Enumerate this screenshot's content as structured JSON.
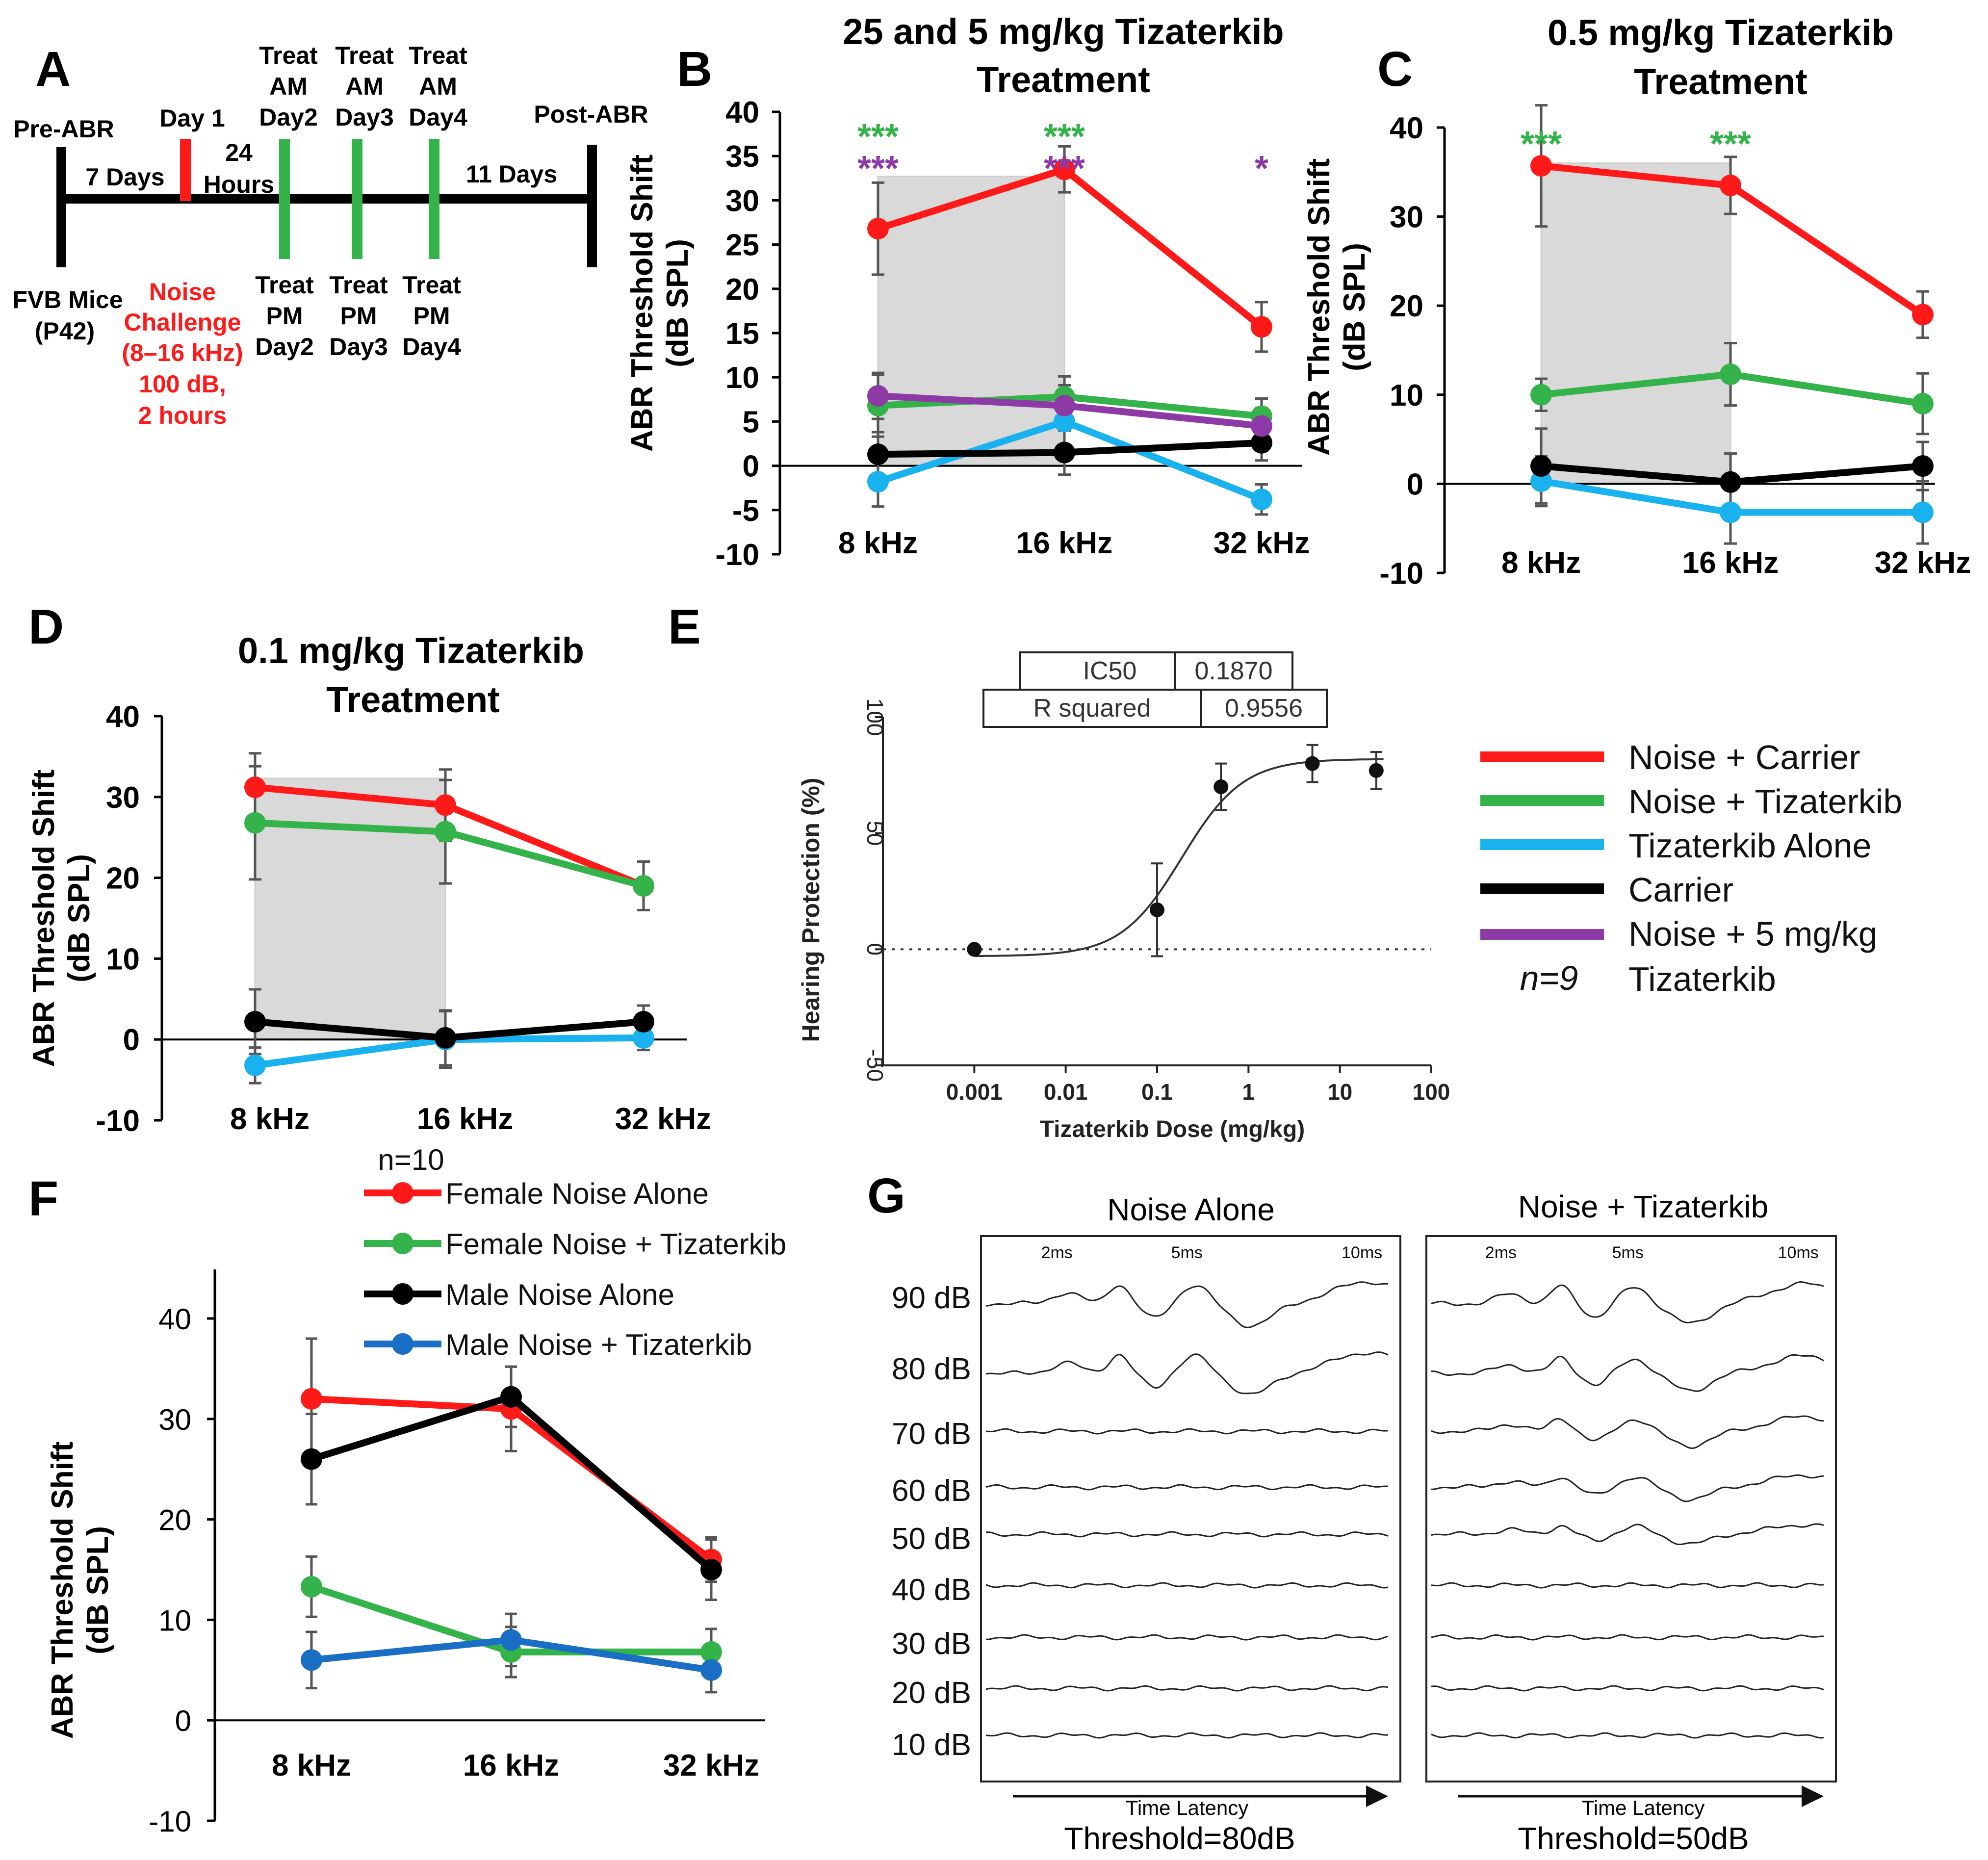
{
  "colors": {
    "noise_carrier": "#ff1a1a",
    "noise_tiz": "#33b34a",
    "tiz_alone": "#1ab2ee",
    "carrier": "#000000",
    "noise_5": "#8e3aa6",
    "male_noise_tiz": "#1a6fc4",
    "shade": "#d9d9d9"
  },
  "panel_labels": {
    "a": "A",
    "b": "B",
    "c": "C",
    "d": "D",
    "e": "E",
    "f": "F",
    "g": "G"
  },
  "timeline": {
    "pre_abr": "Pre-ABR",
    "day1": "Day 1",
    "seven_days": "7 Days",
    "hours_24_a": "24",
    "hours_24_b": "Hours",
    "am_treats": [
      {
        "l1": "Treat",
        "l2": "AM",
        "l3": "Day2"
      },
      {
        "l1": "Treat",
        "l2": "AM",
        "l3": "Day3"
      },
      {
        "l1": "Treat",
        "l2": "AM",
        "l3": "Day4"
      }
    ],
    "pm_treats": [
      {
        "l1": "Treat",
        "l2": "PM",
        "l3": "Day2"
      },
      {
        "l1": "Treat",
        "l2": "PM",
        "l3": "Day3"
      },
      {
        "l1": "Treat",
        "l2": "PM",
        "l3": "Day4"
      }
    ],
    "eleven_days": "11 Days",
    "post_abr": "Post-ABR",
    "mice_a": "FVB Mice",
    "mice_b": "(P42)",
    "noise_lines": [
      "Noise",
      "Challenge",
      "(8–16 kHz)",
      "100 dB,",
      "2 hours"
    ]
  },
  "legend_main": {
    "items": [
      "Noise + Carrier",
      "Noise + Tizaterkib",
      "Tizaterkib Alone",
      "Carrier",
      "Noise + 5 mg/kg"
    ],
    "item5_line2": "Tizaterkib",
    "n": "n=9"
  },
  "chart_data": [
    {
      "id": "B",
      "type": "line",
      "title": "25 and 5 mg/kg Tizaterkib Treatment",
      "title_lines": [
        "25 and 5 mg/kg Tizaterkib",
        "Treatment"
      ],
      "ylabel": "ABR Threshold Shift (dB SPL)",
      "ylabel_lines": [
        "ABR Threshold Shift",
        "(dB SPL)"
      ],
      "categories": [
        "8 kHz",
        "16 kHz",
        "32 kHz"
      ],
      "ylim": [
        -10,
        40
      ],
      "yticks": [
        -10,
        -5,
        0,
        5,
        10,
        15,
        20,
        25,
        30,
        35,
        40
      ],
      "ytick_labels": [
        "-10",
        "-5",
        "0",
        "5",
        "10",
        "15",
        "20",
        "25",
        "30",
        "35",
        "40"
      ],
      "shaded_region": [
        "8 kHz",
        "16 kHz"
      ],
      "series": [
        {
          "name": "Noise + Carrier",
          "color": "#ff1a1a",
          "values": [
            26.8,
            33.5,
            15.7
          ],
          "errors": [
            5.2,
            2.6,
            2.8
          ]
        },
        {
          "name": "Noise + Tizaterkib",
          "color": "#33b34a",
          "values": [
            6.8,
            7.8,
            5.6
          ],
          "errors": [
            3.5,
            2.3,
            2.0
          ]
        },
        {
          "name": "Tizaterkib Alone",
          "color": "#1ab2ee",
          "values": [
            -1.8,
            5.0,
            -3.8
          ],
          "errors": [
            2.8,
            3.2,
            1.7
          ]
        },
        {
          "name": "Carrier",
          "color": "#000000",
          "values": [
            1.3,
            1.5,
            2.6
          ],
          "errors": [
            2.5,
            2.5,
            2.0
          ]
        },
        {
          "name": "Noise + 5 mg/kg Tizaterkib",
          "color": "#8e3aa6",
          "values": [
            7.9,
            6.8,
            4.5
          ],
          "errors": [
            2.6,
            2.3,
            2.0
          ]
        }
      ],
      "annotations": [
        {
          "text": "***",
          "color": "#33b34a",
          "category": "8 kHz",
          "row": 1
        },
        {
          "text": "***",
          "color": "#8e3aa6",
          "category": "8 kHz",
          "row": 2
        },
        {
          "text": "***",
          "color": "#33b34a",
          "category": "16 kHz",
          "row": 1
        },
        {
          "text": "***",
          "color": "#8e3aa6",
          "category": "16 kHz",
          "row": 2
        },
        {
          "text": "*",
          "color": "#8e3aa6",
          "category": "32 kHz",
          "row": 2
        }
      ]
    },
    {
      "id": "C",
      "type": "line",
      "title": "0.5 mg/kg Tizaterkib Treatment",
      "title_lines": [
        "0.5 mg/kg Tizaterkib",
        "Treatment"
      ],
      "ylabel": "ABR Threshold Shift (dB SPL)",
      "ylabel_lines": [
        "ABR Threshold Shift",
        "(dB SPL)"
      ],
      "categories": [
        "8 kHz",
        "16 kHz",
        "32 kHz"
      ],
      "ylim": [
        -10,
        40
      ],
      "yticks": [
        -10,
        0,
        10,
        20,
        30,
        40
      ],
      "ytick_labels": [
        "-10",
        "0",
        "10",
        "20",
        "30",
        "40"
      ],
      "shaded_region": [
        "8 kHz",
        "16 kHz"
      ],
      "series": [
        {
          "name": "Noise + Carrier",
          "color": "#ff1a1a",
          "values": [
            35.7,
            33.5,
            19.0
          ],
          "errors": [
            6.8,
            3.2,
            2.6
          ]
        },
        {
          "name": "Noise + Tizaterkib",
          "color": "#33b34a",
          "values": [
            10.0,
            12.3,
            9.0
          ],
          "errors": [
            1.8,
            3.5,
            3.4
          ]
        },
        {
          "name": "Tizaterkib Alone",
          "color": "#1ab2ee",
          "values": [
            0.3,
            -3.2,
            -3.2
          ],
          "errors": [
            2.8,
            3.5,
            3.5
          ]
        },
        {
          "name": "Carrier",
          "color": "#000000",
          "values": [
            2.0,
            0.2,
            2.0
          ],
          "errors": [
            4.2,
            3.2,
            2.7
          ]
        }
      ],
      "annotations": [
        {
          "text": "***",
          "color": "#33b34a",
          "category": "8 kHz",
          "row": 1
        },
        {
          "text": "***",
          "color": "#33b34a",
          "category": "16 kHz",
          "row": 1
        }
      ]
    },
    {
      "id": "D",
      "type": "line",
      "title": "0.1 mg/kg Tizaterkib Treatment",
      "title_lines": [
        "0.1 mg/kg Tizaterkib",
        "Treatment"
      ],
      "ylabel": "ABR Threshold Shift (dB SPL)",
      "ylabel_lines": [
        "ABR Threshold Shift",
        "(dB SPL)"
      ],
      "categories": [
        "8 kHz",
        "16 kHz",
        "32 kHz"
      ],
      "ylim": [
        -10,
        40
      ],
      "yticks": [
        -10,
        0,
        10,
        20,
        30,
        40
      ],
      "ytick_labels": [
        "-10",
        "0",
        "10",
        "20",
        "30",
        "40"
      ],
      "shaded_region": [
        "8 kHz",
        "16 kHz"
      ],
      "series": [
        {
          "name": "Noise + Carrier",
          "color": "#ff1a1a",
          "values": [
            31.2,
            29.0,
            19.0
          ],
          "errors": [
            4.2,
            4.4,
            3.0
          ]
        },
        {
          "name": "Noise + Tizaterkib",
          "color": "#33b34a",
          "values": [
            26.8,
            25.7,
            19.0
          ],
          "errors": [
            7.0,
            6.4,
            3.0
          ]
        },
        {
          "name": "Tizaterkib Alone",
          "color": "#1ab2ee",
          "values": [
            -3.2,
            0.0,
            0.2
          ],
          "errors": [
            2.2,
            3.5,
            1.5
          ]
        },
        {
          "name": "Carrier",
          "color": "#000000",
          "values": [
            2.2,
            0.2,
            2.2
          ],
          "errors": [
            4.0,
            3.4,
            2.0
          ]
        }
      ],
      "annotations": []
    },
    {
      "id": "E",
      "type": "scatter",
      "ylabel": "Hearing Protection (%)",
      "xlabel": "Tizaterkib Dose (mg/kg)",
      "xscale": "log",
      "xlim": [
        0.0001,
        100
      ],
      "ylim": [
        -50,
        100
      ],
      "xticks": [
        0.001,
        0.01,
        0.1,
        1,
        10,
        100
      ],
      "xtick_labels": [
        "0.001",
        "0.01",
        "0.1",
        "1",
        "10",
        "100"
      ],
      "yticks": [
        -50,
        0,
        50,
        100
      ],
      "ytick_labels": [
        "-50",
        "0",
        "50",
        "100"
      ],
      "points": [
        {
          "x": 0.001,
          "y": 0,
          "err": 0
        },
        {
          "x": 0.1,
          "y": 17,
          "err": 20
        },
        {
          "x": 0.5,
          "y": 70,
          "err": 10
        },
        {
          "x": 5,
          "y": 80,
          "err": 8
        },
        {
          "x": 25,
          "y": 77,
          "err": 8
        }
      ],
      "fit": {
        "bottom": -3,
        "top": 82,
        "ic50": 0.187,
        "hill": 1.3
      },
      "stats": [
        {
          "label": "IC50",
          "value": "0.1870"
        },
        {
          "label": "R squared",
          "value": "0.9556"
        }
      ]
    },
    {
      "id": "F",
      "type": "line",
      "ylabel": "ABR Threshold Shift (dB SPL)",
      "ylabel_lines": [
        "ABR Threshold Shift",
        "(dB SPL)"
      ],
      "categories": [
        "8 kHz",
        "16 kHz",
        "32 kHz"
      ],
      "ylim": [
        -10,
        40
      ],
      "yticks": [
        -10,
        0,
        10,
        20,
        30,
        40
      ],
      "ytick_labels": [
        "-10",
        "0",
        "10",
        "20",
        "30",
        "40"
      ],
      "legend_n": "n=10",
      "series": [
        {
          "name": "Female Noise Alone",
          "color": "#ff1a1a",
          "values": [
            32.0,
            31.0,
            16.0
          ],
          "errors": [
            6.0,
            4.2,
            2.2
          ]
        },
        {
          "name": "Female Noise + Tizaterkib",
          "color": "#33b34a",
          "values": [
            13.3,
            6.8,
            6.8
          ],
          "errors": [
            3.0,
            2.5,
            2.3
          ]
        },
        {
          "name": "Male Noise Alone",
          "color": "#000000",
          "values": [
            26.0,
            32.2,
            15.0
          ],
          "errors": [
            4.5,
            3.0,
            3.0
          ]
        },
        {
          "name": "Male Noise + Tizaterkib",
          "color": "#1a6fc4",
          "values": [
            6.0,
            8.0,
            5.0
          ],
          "errors": [
            2.8,
            2.6,
            2.2
          ]
        }
      ]
    },
    {
      "id": "G",
      "type": "abr_traces",
      "levels": [
        "90 dB",
        "80 dB",
        "70 dB",
        "60 dB",
        "50 dB",
        "40 dB",
        "30 dB",
        "20 dB",
        "10 dB"
      ],
      "time_marks": [
        "2ms",
        "5ms",
        "10ms"
      ],
      "axis_label": "Time Latency",
      "panels": [
        {
          "title": "Noise Alone",
          "threshold": "Threshold=80dB",
          "responsive_levels": 2
        },
        {
          "title": "Noise + Tizaterkib",
          "threshold": "Threshold=50dB",
          "responsive_levels": 5
        }
      ]
    }
  ]
}
